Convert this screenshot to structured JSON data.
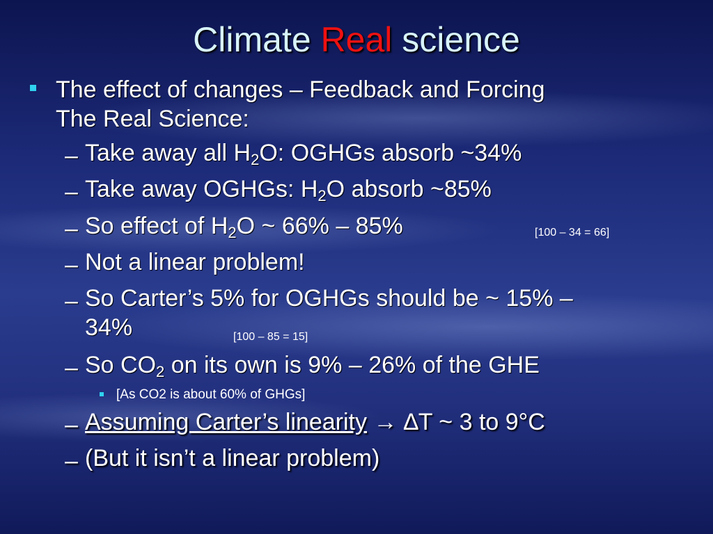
{
  "title": {
    "before": "Climate",
    "highlight": "Real",
    "after": "science"
  },
  "bullet": {
    "lines": [
      "The effect of changes – Feedback and Forcing",
      "The Real Science:"
    ]
  },
  "marker": "–",
  "items": [
    {
      "text": [
        "Take away all H",
        "2",
        "O: OGHGs absorb ~34%"
      ]
    },
    {
      "text": [
        "Take away OGHGs: H",
        "2",
        "O absorb ~85%"
      ]
    },
    {
      "text": [
        "So effect of H",
        "2",
        "O ~ 66% – 85%"
      ],
      "note": "[100 – 34 = 66]"
    },
    {
      "text": [
        "Not a linear problem!"
      ]
    },
    {
      "text": [
        "So Carter’s 5% for OGHGs should be ~ 15% –",
        "34%"
      ],
      "note": "[100 – 85 = 15]"
    },
    {
      "text": [
        "So CO",
        "2",
        " on its own is 9% – 26% of the GHE"
      ],
      "subbullet": "[As CO2 is about 60% of GHGs]"
    },
    {
      "text": [
        "Assuming Carter’s linearity",
        " → ∆T ~ 3 to 9°C"
      ]
    },
    {
      "text": [
        "(But it isn’t a linear problem)"
      ]
    }
  ]
}
